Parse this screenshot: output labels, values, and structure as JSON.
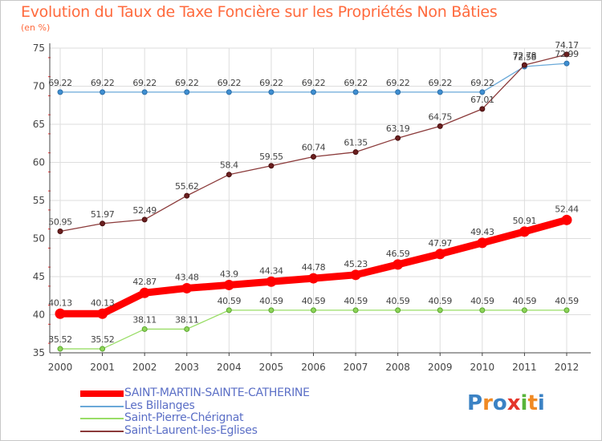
{
  "chart_data": {
    "type": "line",
    "title": "Evolution du Taux de Taxe Foncière sur les Propriétés Non Bâties",
    "ylabel": "(en %)",
    "xlabel": "",
    "ylim": [
      35,
      75
    ],
    "yticks": [
      35,
      40,
      45,
      50,
      55,
      60,
      65,
      70,
      75
    ],
    "categories": [
      "2000",
      "2001",
      "2002",
      "2003",
      "2004",
      "2005",
      "2006",
      "2007",
      "2008",
      "2009",
      "2010",
      "2011",
      "2012"
    ],
    "grid": true,
    "series": [
      {
        "name": "SAINT-MARTIN-SAINTE-CATHERINE",
        "color": "#ff0000",
        "values": [
          40.13,
          40.13,
          42.87,
          43.48,
          43.9,
          44.34,
          44.78,
          45.23,
          46.59,
          47.97,
          49.43,
          50.91,
          52.44
        ],
        "labels": [
          "40.13",
          "40.13",
          "42.87",
          "43.48",
          "43.9",
          "44.34",
          "44.78",
          "45.23",
          "46.59",
          "47.97",
          "49.43",
          "50.91",
          "52.44"
        ]
      },
      {
        "name": "Les Billanges",
        "color": "#6aa9d8",
        "values": [
          69.22,
          69.22,
          69.22,
          69.22,
          69.22,
          69.22,
          69.22,
          69.22,
          69.22,
          69.22,
          69.22,
          72.58,
          72.99
        ],
        "labels": [
          "69.22",
          "69.22",
          "69.22",
          "69.22",
          "69.22",
          "69.22",
          "69.22",
          "69.22",
          "69.22",
          "69.22",
          "69.22",
          "72.58",
          "72.99"
        ]
      },
      {
        "name": "Saint-Pierre-Chérignat",
        "color": "#99dd66",
        "values": [
          35.52,
          35.52,
          38.11,
          38.11,
          40.59,
          40.59,
          40.59,
          40.59,
          40.59,
          40.59,
          40.59,
          40.59,
          40.59
        ],
        "labels": [
          "35.52",
          "35.52",
          "38.11",
          "38.11",
          "40.59",
          "40.59",
          "40.59",
          "40.59",
          "40.59",
          "40.59",
          "40.59",
          "40.59",
          "40.59"
        ]
      },
      {
        "name": "Saint-Laurent-les-Eglises",
        "color": "#8b3a3a",
        "values": [
          50.95,
          51.97,
          52.49,
          55.62,
          58.4,
          59.55,
          60.74,
          61.35,
          63.19,
          64.75,
          67.01,
          72.78,
          74.17
        ],
        "labels": [
          "50.95",
          "51.97",
          "52.49",
          "55.62",
          "58.4",
          "59.55",
          "60.74",
          "61.35",
          "63.19",
          "64.75",
          "67.01",
          "72.78",
          "74.17"
        ]
      }
    ]
  },
  "logo": {
    "text": "Proxiti",
    "colors": [
      "#3b82c4",
      "#f08a24",
      "#3b82c4",
      "#e4362b",
      "#59b53b",
      "#f08a24",
      "#3b82c4"
    ]
  }
}
